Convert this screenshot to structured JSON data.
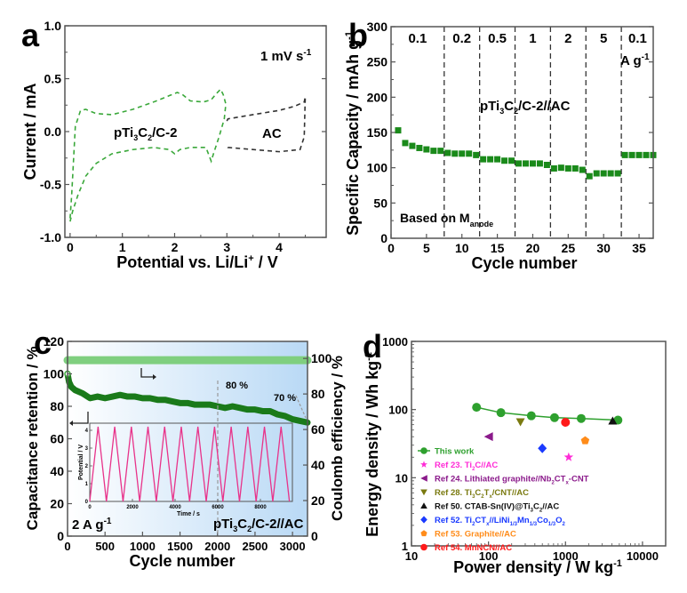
{
  "chart_data": [
    {
      "panel": "a",
      "type": "line",
      "ylabel": "Current / mA",
      "xlabel": "Potential vs. Li/Li+ / V",
      "xlabel_parts": [
        "Potential vs. Li/Li",
        "+",
        " / V"
      ],
      "xlim": [
        -0.1,
        4.9
      ],
      "ylim": [
        -1.0,
        1.0
      ],
      "xticks": [
        0,
        1,
        2,
        3,
        4
      ],
      "yticks": [
        -1.0,
        -0.5,
        0.0,
        0.5,
        1.0
      ],
      "ytick_labels": [
        "-1.0",
        "-0.5",
        "0.0",
        "0.5",
        "1.0"
      ],
      "annotation": {
        "text": "1 mV s",
        "sup": "-1"
      },
      "series": [
        {
          "name": "pTi3C2/C-2",
          "label_parts": [
            "pTi",
            "3",
            "C",
            "2",
            "/C-2"
          ],
          "color": "#3aa83a",
          "style": "dashed",
          "x": [
            0.0,
            0.03,
            0.1,
            0.2,
            0.3,
            0.5,
            0.8,
            1.2,
            1.6,
            1.9,
            2.05,
            2.15,
            2.3,
            2.55,
            2.7,
            2.8,
            2.88,
            2.93,
            2.98,
            2.95,
            2.85,
            2.75,
            2.7,
            2.6,
            2.3,
            2.1,
            2.0,
            1.9,
            1.6,
            1.2,
            0.8,
            0.5,
            0.3,
            0.15,
            0.05,
            0.0
          ],
          "y": [
            -0.82,
            -0.6,
            0.05,
            0.2,
            0.21,
            0.17,
            0.16,
            0.21,
            0.28,
            0.34,
            0.37,
            0.35,
            0.29,
            0.28,
            0.3,
            0.36,
            0.4,
            0.35,
            0.26,
            0.12,
            -0.05,
            -0.2,
            -0.28,
            -0.15,
            -0.15,
            -0.17,
            -0.21,
            -0.17,
            -0.15,
            -0.17,
            -0.21,
            -0.3,
            -0.42,
            -0.6,
            -0.75,
            -0.85
          ]
        },
        {
          "name": "AC",
          "label_parts": [
            "AC"
          ],
          "color": "#333333",
          "style": "dashed",
          "x": [
            3.0,
            3.02,
            3.5,
            4.0,
            4.3,
            4.48,
            4.5,
            4.48,
            4.4,
            4.0,
            3.5,
            3.02,
            3.0
          ],
          "y": [
            0.1,
            0.12,
            0.16,
            0.2,
            0.24,
            0.28,
            0.33,
            -0.05,
            -0.17,
            -0.19,
            -0.17,
            -0.15,
            -0.13
          ]
        }
      ]
    },
    {
      "panel": "b",
      "type": "scatter",
      "ylabel": "Specific Capacity / mAh g",
      "ylabel_sup": "-1",
      "xlabel": "Cycle number",
      "xlim": [
        0,
        37
      ],
      "ylim": [
        0,
        300
      ],
      "xticks": [
        0,
        5,
        10,
        15,
        20,
        25,
        30,
        35
      ],
      "yticks": [
        0,
        50,
        100,
        150,
        200,
        250,
        300
      ],
      "rate_boundaries": [
        7.5,
        12.5,
        17.5,
        22.5,
        27.5,
        32.5
      ],
      "rate_labels": [
        {
          "text": "0.1",
          "x": 3.75
        },
        {
          "text": "0.2",
          "x": 10
        },
        {
          "text": "0.5",
          "x": 15
        },
        {
          "text": "1",
          "x": 20
        },
        {
          "text": "2",
          "x": 25
        },
        {
          "text": "5",
          "x": 30
        },
        {
          "text": "0.1",
          "x": 34.8
        }
      ],
      "rate_unit": {
        "text": "A g",
        "sup": "-1"
      },
      "sample_label_parts": [
        "pTi",
        "3",
        "C",
        "2",
        "/C-2//AC"
      ],
      "basis_label": {
        "text": "Based on M",
        "sub": "anode"
      },
      "series": [
        {
          "name": "pTi3C2/C-2//AC",
          "color": "#1a8a1a",
          "x": [
            1,
            2,
            3,
            4,
            5,
            6,
            7,
            8,
            9,
            10,
            11,
            12,
            13,
            14,
            15,
            16,
            17,
            18,
            19,
            20,
            21,
            22,
            23,
            24,
            25,
            26,
            27,
            28,
            29,
            30,
            31,
            32,
            33,
            34,
            35,
            36,
            37
          ],
          "y": [
            153,
            135,
            131,
            128,
            126,
            124,
            124,
            121,
            120,
            120,
            120,
            118,
            112,
            112,
            112,
            110,
            110,
            106,
            106,
            106,
            106,
            104,
            99,
            100,
            99,
            99,
            97,
            88,
            92,
            92,
            92,
            92,
            118,
            118,
            118,
            118,
            118
          ]
        }
      ]
    },
    {
      "panel": "c",
      "type": "line",
      "xlabel": "Cycle number",
      "ylabel_left": "Capacitance retention / %",
      "ylabel_right": "Coulomb efficiency / %",
      "xlim": [
        0,
        3200
      ],
      "ylim_left": [
        0,
        120
      ],
      "ylim_right": [
        0,
        110
      ],
      "xticks": [
        0,
        500,
        1000,
        1500,
        2000,
        2500,
        3000
      ],
      "yticks_left": [
        0,
        20,
        40,
        60,
        80,
        100,
        120
      ],
      "yticks_right": [
        0,
        20,
        40,
        60,
        80,
        100
      ],
      "annotations": [
        {
          "text": "80 %",
          "x": 2000
        },
        {
          "text": "70 %",
          "x": 3200
        }
      ],
      "current_label": {
        "text": "2 A g",
        "sup": "-1"
      },
      "sample_label_parts": [
        "pTi",
        "3",
        "C",
        "2",
        "/C-2//AC"
      ],
      "series": [
        {
          "name": "Capacitance retention",
          "axis": "left",
          "color": "#1a7a1a",
          "x": [
            0,
            20,
            50,
            100,
            200,
            300,
            400,
            500,
            600,
            700,
            800,
            900,
            1000,
            1100,
            1200,
            1300,
            1400,
            1500,
            1600,
            1700,
            1800,
            1900,
            2000,
            2100,
            2200,
            2300,
            2400,
            2500,
            2600,
            2700,
            2800,
            2900,
            3000,
            3100,
            3200
          ],
          "y": [
            100,
            95,
            92,
            90,
            88,
            85,
            86,
            85,
            86,
            87,
            86,
            86,
            85,
            85,
            84,
            84,
            83,
            82,
            82,
            81,
            81,
            81,
            80,
            79,
            80,
            79,
            78,
            78,
            77,
            77,
            75,
            74,
            72,
            71,
            70
          ]
        },
        {
          "name": "Coulomb efficiency",
          "axis": "right",
          "color": "#7fcf7f",
          "x": [
            0,
            3200
          ],
          "y": [
            99,
            99
          ]
        }
      ],
      "inset": {
        "xlabel": "Time / s",
        "ylabel": "Potential / V",
        "xlim": [
          0,
          9500
        ],
        "ylim": [
          0,
          4.4
        ],
        "xticks": [
          0,
          2000,
          4000,
          6000,
          8000
        ],
        "yticks": [
          0,
          1,
          2,
          3,
          4
        ],
        "color": "#e8338a",
        "period_s": 780,
        "cycles": 12,
        "vmin": 0,
        "vmax": 4.2
      }
    },
    {
      "panel": "d",
      "type": "scatter",
      "xlabel": "Power density / W kg",
      "xlabel_sup": "-1",
      "ylabel": "Energy density / Wh kg",
      "ylabel_sup": "-1",
      "xscale": "log",
      "yscale": "log",
      "xlim": [
        10,
        20000
      ],
      "ylim": [
        1,
        1000
      ],
      "xticks": [
        10,
        100,
        1000,
        10000
      ],
      "yticks": [
        1,
        10,
        100,
        1000
      ],
      "legend_position": "lower-left",
      "series": [
        {
          "name": "This work",
          "label": "This work",
          "color": "#2ea02e",
          "marker": "circle",
          "line": true,
          "x": [
            70,
            145,
            360,
            720,
            1600,
            4800
          ],
          "y": [
            108,
            90,
            81,
            76,
            74,
            70
          ]
        },
        {
          "name": "Ref 23",
          "label": "Ref 23. Ti2C//AC",
          "label_parts": [
            "Ref 23. Ti",
            "2",
            "C//AC"
          ],
          "color": "#ff2bd6",
          "marker": "star",
          "x": [
            1100
          ],
          "y": [
            20
          ]
        },
        {
          "name": "Ref 24",
          "label": "Ref 24. Lithiated graphite//Nb2CTx-CNT",
          "label_parts": [
            "Ref 24. Lithiated graphite//Nb",
            "2",
            "CT",
            "x",
            "-CNT"
          ],
          "color": "#8b1a8b",
          "marker": "triangle-left",
          "x": [
            100
          ],
          "y": [
            40
          ]
        },
        {
          "name": "Ref 28",
          "label": "Ref 28. Ti3C2Tx/CNT//AC",
          "label_parts": [
            "Ref 28. Ti",
            "3",
            "C",
            "2",
            "T",
            "x",
            "/CNT//AC"
          ],
          "color": "#7a7a10",
          "marker": "triangle-down",
          "x": [
            260
          ],
          "y": [
            66
          ]
        },
        {
          "name": "Ref 50",
          "label": "Ref 50. CTAB-Sn(IV)@Ti3C2//AC",
          "label_parts": [
            "Ref 50. CTAB-Sn(IV)@Ti",
            "3",
            "C",
            "2",
            "//AC"
          ],
          "color": "#111111",
          "marker": "triangle-up",
          "x": [
            4100
          ],
          "y": [
            68
          ]
        },
        {
          "name": "Ref 52",
          "label": "Ref 52. Ti2CTx//LiNi1/3Mn1/3Co1/3O2",
          "label_parts": [
            "Ref 52. Ti",
            "2",
            "CT",
            "x",
            "//LiNi",
            "1/3",
            "Mn",
            "1/3",
            "Co",
            "1/3",
            "O",
            "2"
          ],
          "color": "#1a3aff",
          "marker": "diamond",
          "x": [
            500
          ],
          "y": [
            27
          ]
        },
        {
          "name": "Ref 53",
          "label": "Ref 53. Graphite//AC",
          "label_parts": [
            "Ref 53. Graphite//AC"
          ],
          "color": "#ff8c1a",
          "marker": "pentagon",
          "x": [
            1800
          ],
          "y": [
            35
          ]
        },
        {
          "name": "Ref 54",
          "label": "Ref 54. MnNCN//AC",
          "label_parts": [
            "Ref 54. MnNCN//AC"
          ],
          "color": "#ff1a1a",
          "marker": "circle",
          "x": [
            1000
          ],
          "y": [
            65
          ]
        }
      ]
    }
  ],
  "panel_letters": [
    "a",
    "b",
    "c",
    "d"
  ]
}
